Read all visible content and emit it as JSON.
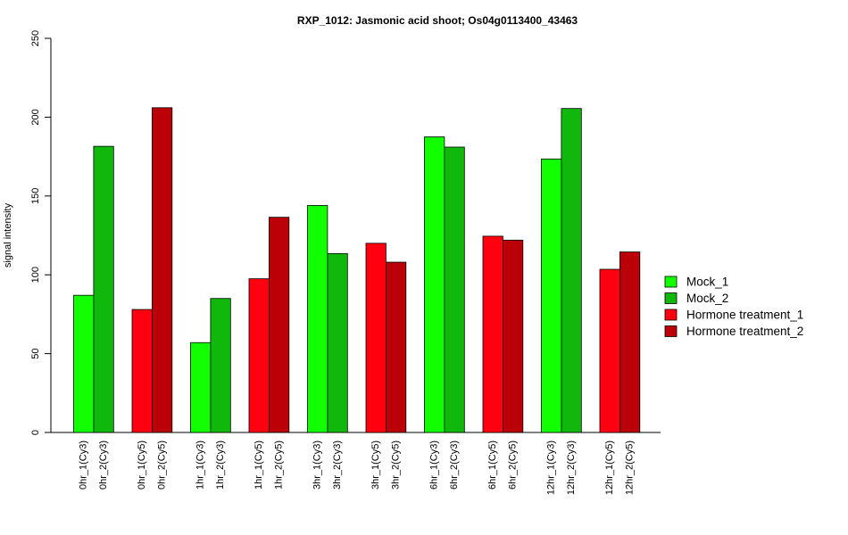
{
  "chart_data": {
    "type": "bar",
    "title": "RXP_1012: Jasmonic acid shoot; Os04g0113400_43463",
    "xlabel": "",
    "ylabel": "signal intensity",
    "ylim": [
      0,
      250
    ],
    "yticks": [
      0,
      50,
      100,
      150,
      200,
      250
    ],
    "categories": [
      "0hr_1(Cy3)",
      "0hr_2(Cy3)",
      "0hr_1(Cy5)",
      "0hr_2(Cy5)",
      "1hr_1(Cy3)",
      "1hr_2(Cy3)",
      "1hr_1(Cy5)",
      "1hr_2(Cy5)",
      "3hr_1(Cy3)",
      "3hr_2(Cy3)",
      "3hr_1(Cy5)",
      "3hr_2(Cy5)",
      "6hr_1(Cy3)",
      "6hr_2(Cy3)",
      "6hr_1(Cy5)",
      "6hr_2(Cy5)",
      "12hr_1(Cy3)",
      "12hr_2(Cy3)",
      "12hr_1(Cy5)",
      "12hr_2(Cy5)"
    ],
    "values": [
      87,
      181.5,
      78,
      206,
      57,
      85,
      97.5,
      136.5,
      144,
      113.5,
      120,
      108,
      187.5,
      181,
      124.5,
      122,
      173.5,
      205.5,
      103.5,
      114.5
    ],
    "bar_series_index": [
      0,
      1,
      2,
      3,
      0,
      1,
      2,
      3,
      0,
      1,
      2,
      3,
      0,
      1,
      2,
      3,
      0,
      1,
      2,
      3
    ],
    "series": [
      {
        "name": "Mock_1",
        "color": "#11ff00"
      },
      {
        "name": "Mock_2",
        "color": "#0fb80a"
      },
      {
        "name": "Hormone treatment_1",
        "color": "#ff0010"
      },
      {
        "name": "Hormone treatment_2",
        "color": "#bc0008"
      }
    ],
    "legend_position": "right",
    "grid": false
  }
}
